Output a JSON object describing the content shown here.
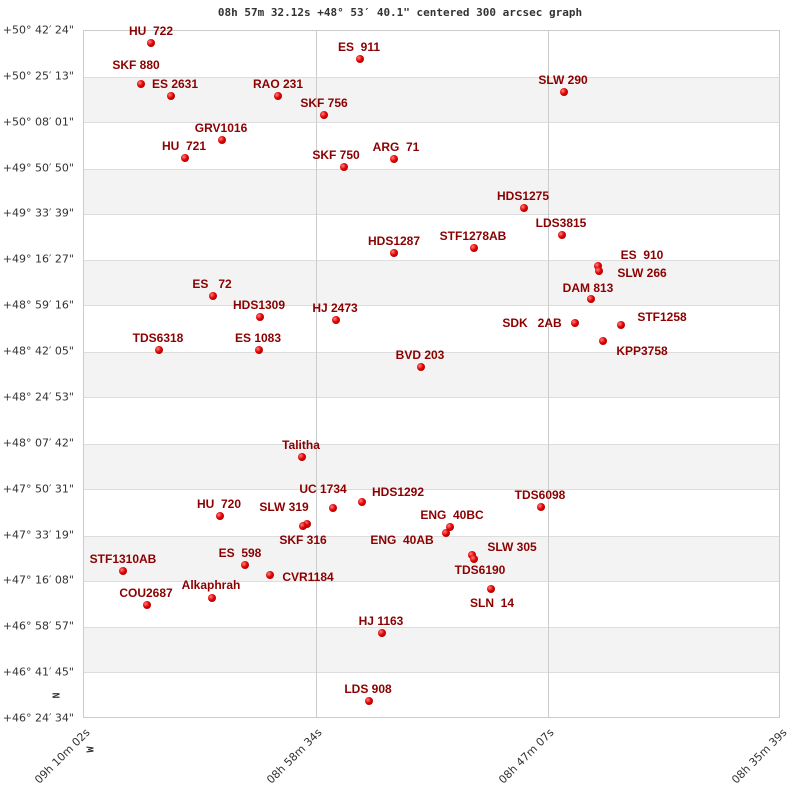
{
  "title": "08h 57m 32.12s +48° 53′ 40.1\" centered 300 arcsec graph",
  "chart_data": {
    "type": "scatter",
    "title": "08h 57m 32.12s +48° 53′ 40.1\" centered 300 arcsec graph",
    "y_ticks": [
      "+50° 42′ 24\"",
      "+50° 25′ 13\"",
      "+50° 08′ 01\"",
      "+49° 50′ 50\"",
      "+49° 33′ 39\"",
      "+49° 16′ 27\"",
      "+48° 59′ 16\"",
      "+48° 42′ 05\"",
      "+48° 24′ 53\"",
      "+48° 07′ 42\"",
      "+47° 50′ 31\"",
      "+47° 33′ 19\"",
      "+47° 16′ 08\"",
      "+46° 58′ 57\"",
      "+46° 41′ 45\"",
      "+46° 24′ 34\""
    ],
    "x_ticks": [
      "09h 10m 02s",
      "08h 58m 34s",
      "08h 47m 07s",
      "08h 35m 39s"
    ],
    "compass": {
      "north": "N",
      "west": "W"
    },
    "grid": true,
    "marker_color": "#e00000",
    "label_color": "#8b0000",
    "stars": [
      "HU  722",
      "ES  911",
      "SKF 880",
      "ES 2631",
      "RAO 231",
      "SKF 756",
      "SLW 290",
      "GRV1016",
      "HU  721",
      "SKF 750",
      "ARG  71",
      "HDS1275",
      "LDS3815",
      "STF1278AB",
      "HDS1287",
      "ES  910",
      "SLW 266",
      "DAM 813",
      "SDK   2AB",
      "STF1258",
      "KPP3758",
      "ES   72",
      "HDS1309",
      "HJ 2473",
      "TDS6318",
      "ES 1083",
      "BVD 203",
      "Talitha",
      "HDS1292",
      "UC 1734",
      "SLW 319",
      "SKF 316",
      "HU  720",
      "TDS6098",
      "ENG  40BC",
      "ENG  40AB",
      "SLW 305",
      "TDS6190",
      "STF1310AB",
      "ES  598",
      "CVR1184",
      "SLN  14",
      "COU2687",
      "Alkaphrah",
      "HJ 1163",
      "LDS 908"
    ]
  }
}
